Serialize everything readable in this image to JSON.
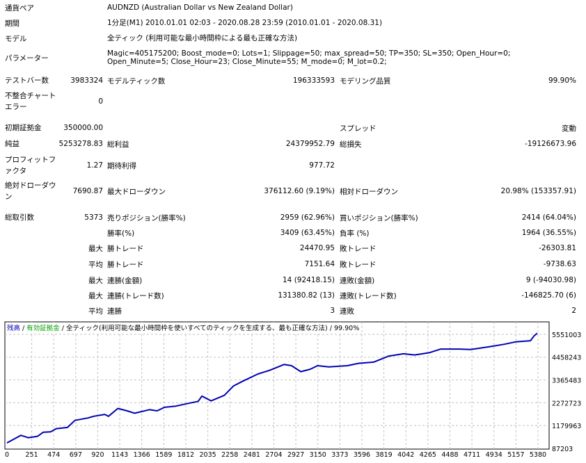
{
  "header": [
    {
      "label": "通貨ペア",
      "value": "AUDNZD (Australian Dollar vs New Zealand Dollar)"
    },
    {
      "label": "期間",
      "value": "1分足(M1) 2010.01.01 02:03 - 2020.08.28 23:59 (2010.01.01 - 2020.08.31)"
    },
    {
      "label": "モデル",
      "value": "全ティック (利用可能な最小時間枠による最も正確な方法)"
    },
    {
      "label": "パラメーター",
      "value": "Magic=405175200; Boost_mode=0; Lots=1; Slippage=50; max_spread=50; TP=350; SL=350; Open_Hour=0; Open_Minute=5; Close_Hour=23; Close_Minute=55; M_mode=0; M_lot=0.2;"
    }
  ],
  "stats": [
    [
      "テストバー数",
      "3983324",
      "モデルティック数",
      "196333593",
      "モデリング品質",
      "99.90%"
    ],
    [
      "不整合チャートエラー",
      "0",
      "",
      "",
      "",
      ""
    ],
    [
      "初期証拠金",
      "350000.00",
      "",
      "",
      "スプレッド",
      "変動"
    ],
    [
      "純益",
      "5253278.83",
      "総利益",
      "24379952.79",
      "総損失",
      "-19126673.96"
    ],
    [
      "プロフィットファクタ",
      "1.27",
      "期待利得",
      "977.72",
      "",
      ""
    ],
    [
      "絶対ドローダウン",
      "7690.87",
      "最大ドローダウン",
      "376112.60 (9.19%)",
      "相対ドローダウン",
      "20.98% (153357.91)"
    ],
    [
      "総取引数",
      "5373",
      "売りポジション(勝率%)",
      "2959 (62.96%)",
      "買いポジション(勝率%)",
      "2414 (64.04%)"
    ],
    [
      "",
      "",
      "勝率(%)",
      "3409 (63.45%)",
      "負率 (%)",
      "1964 (36.55%)"
    ],
    [
      "",
      "最大",
      "勝トレード",
      "24470.95",
      "敗トレード",
      "-26303.81"
    ],
    [
      "",
      "平均",
      "勝トレード",
      "7151.64",
      "敗トレード",
      "-9738.63"
    ],
    [
      "",
      "最大",
      "連勝(金額)",
      "14 (92418.15)",
      "連敗(金額)",
      "9 (-94030.98)"
    ],
    [
      "",
      "最大",
      "連勝(トレード数)",
      "131380.82 (13)",
      "連敗(トレード数)",
      "-146825.70 (6)"
    ],
    [
      "",
      "平均",
      "連勝",
      "3",
      "連敗",
      "2"
    ]
  ],
  "chart_legend": {
    "balance": "残高",
    "equity": "有効証拠金",
    "model": "全ティック(利用可能な最小時間枠を使いすべてのティックを生成する、最も正確な方法)",
    "quality": "99.90%",
    "sep": " / "
  },
  "colors": {
    "balance": "#0000b4",
    "equity": "#00a000",
    "grid": "#c0c0c0"
  },
  "chart_data": {
    "type": "line",
    "title": "",
    "xlabel": "",
    "ylabel": "",
    "xlim": [
      0,
      5486
    ],
    "ylim": [
      87203,
      6080000
    ],
    "x_ticks": [
      0,
      251,
      474,
      697,
      920,
      1143,
      1366,
      1589,
      1812,
      2035,
      2258,
      2481,
      2704,
      2927,
      3150,
      3373,
      3596,
      3819,
      4042,
      4265,
      4488,
      4711,
      4934,
      5157,
      5380
    ],
    "y_ticks": [
      87203,
      1179963,
      2272723,
      3365483,
      4458243,
      5551003
    ],
    "grid": true,
    "series": [
      {
        "name": "残高",
        "x": [
          0,
          140,
          216,
          310,
          367,
          443,
          499,
          613,
          689,
          821,
          878,
          991,
          1029,
          1124,
          1218,
          1294,
          1445,
          1521,
          1596,
          1710,
          1823,
          1937,
          1975,
          2069,
          2202,
          2296,
          2391,
          2542,
          2656,
          2807,
          2883,
          2977,
          3072,
          3147,
          3261,
          3450,
          3564,
          3715,
          3866,
          4017,
          4131,
          4282,
          4396,
          4585,
          4698,
          4888,
          5039,
          5152,
          5304,
          5340,
          5373
        ],
        "y": [
          350000,
          713000,
          600000,
          668000,
          861000,
          884000,
          1032000,
          1089000,
          1430000,
          1544000,
          1624000,
          1715000,
          1624000,
          2000000,
          1886000,
          1772000,
          1943000,
          1886000,
          2056000,
          2113000,
          2227000,
          2341000,
          2591000,
          2364000,
          2626000,
          3081000,
          3309000,
          3650000,
          3821000,
          4105000,
          4049000,
          3764000,
          3878000,
          4049000,
          3991000,
          4049000,
          4162000,
          4219000,
          4504000,
          4618000,
          4561000,
          4675000,
          4845000,
          4845000,
          4822000,
          4959000,
          5073000,
          5187000,
          5244000,
          5471000,
          5603279
        ]
      }
    ]
  }
}
